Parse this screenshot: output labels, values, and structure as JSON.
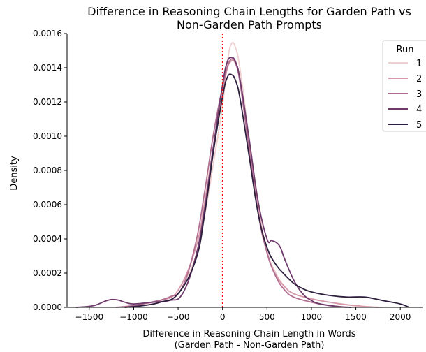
{
  "chart_data": {
    "type": "line",
    "title": "Difference in Reasoning Chain Lengths for Garden Path vs Non-Garden Path Prompts",
    "title_lines": [
      "Difference in Reasoning Chain Lengths for Garden Path vs",
      "Non-Garden Path Prompts"
    ],
    "xlabel_lines": [
      "Difference in Reasoning Chain Length in Words",
      "(Garden Path - Non-Garden Path)"
    ],
    "ylabel": "Density",
    "xlim": [
      -1750,
      2250
    ],
    "ylim": [
      0,
      0.0016
    ],
    "x_ticks": [
      -1500,
      -1000,
      -500,
      0,
      500,
      1000,
      1500,
      2000
    ],
    "x_tick_labels": [
      "−1500",
      "−1000",
      "−500",
      "0",
      "500",
      "1000",
      "1500",
      "2000"
    ],
    "y_ticks": [
      0,
      0.0002,
      0.0004,
      0.0006,
      0.0008,
      0.001,
      0.0012,
      0.0014,
      0.0016
    ],
    "y_tick_labels": [
      "0.0000",
      "0.0002",
      "0.0004",
      "0.0006",
      "0.0008",
      "0.0010",
      "0.0012",
      "0.0014",
      "0.0016"
    ],
    "grid": false,
    "reference_line": {
      "x": 0,
      "color": "#ff0000",
      "style": "dotted"
    },
    "legend": {
      "title": "Run",
      "placement": "top-right"
    },
    "series": [
      {
        "name": "1",
        "color": "#efcfcf",
        "x": [
          -1050,
          -900,
          -700,
          -500,
          -300,
          -200,
          -100,
          0,
          50,
          100,
          150,
          200,
          300,
          400,
          500,
          600,
          700,
          800,
          1000,
          1200,
          1400,
          1600,
          1800
        ],
        "y": [
          0,
          1e-05,
          3e-05,
          8e-05,
          0.0003,
          0.00054,
          0.00085,
          0.00118,
          0.00142,
          0.00154,
          0.00151,
          0.00138,
          0.00098,
          0.0006,
          0.00033,
          0.0002,
          0.00012,
          8e-05,
          5e-05,
          3e-05,
          1.5e-05,
          5e-06,
          0
        ]
      },
      {
        "name": "2",
        "color": "#d799a9",
        "x": [
          -1100,
          -900,
          -700,
          -500,
          -300,
          -200,
          -100,
          0,
          50,
          100,
          150,
          200,
          300,
          400,
          500,
          600,
          700,
          800,
          1000,
          1200,
          1400,
          1600,
          1750
        ],
        "y": [
          0,
          2e-05,
          4e-05,
          0.0001,
          0.00035,
          0.00062,
          0.00095,
          0.00125,
          0.00139,
          0.00144,
          0.00142,
          0.00132,
          0.00096,
          0.00058,
          0.00032,
          0.00019,
          0.00012,
          8e-05,
          5e-05,
          3e-05,
          1.5e-05,
          5e-06,
          0
        ]
      },
      {
        "name": "3",
        "color": "#b16e91",
        "x": [
          -1200,
          -1000,
          -800,
          -600,
          -450,
          -300,
          -200,
          -100,
          0,
          50,
          100,
          150,
          200,
          300,
          400,
          500,
          600,
          700,
          800,
          1000,
          1200,
          1400
        ],
        "y": [
          0,
          1e-05,
          3e-05,
          6e-05,
          0.00012,
          0.00038,
          0.00068,
          0.00102,
          0.00129,
          0.0014,
          0.00145,
          0.00142,
          0.0013,
          0.00092,
          0.00055,
          0.00032,
          0.00018,
          0.0001,
          6e-05,
          3e-05,
          1e-05,
          0
        ]
      },
      {
        "name": "4",
        "color": "#6e3a6c",
        "x": [
          -1650,
          -1450,
          -1300,
          -1200,
          -1100,
          -1000,
          -800,
          -600,
          -450,
          -300,
          -200,
          -100,
          0,
          50,
          100,
          150,
          200,
          300,
          400,
          500,
          550,
          600,
          650,
          700,
          800,
          900,
          1000,
          1100,
          1300,
          1450
        ],
        "y": [
          0,
          1e-05,
          4e-05,
          4.5e-05,
          3e-05,
          2e-05,
          3e-05,
          4e-05,
          8e-05,
          0.0003,
          0.00058,
          0.00095,
          0.0013,
          0.00143,
          0.00146,
          0.00143,
          0.00132,
          0.00098,
          0.00062,
          0.0004,
          0.00039,
          0.00038,
          0.00035,
          0.00028,
          0.00016,
          8e-05,
          4e-05,
          2e-05,
          5e-06,
          0
        ]
      },
      {
        "name": "5",
        "color": "#2d1e3e",
        "x": [
          -1100,
          -900,
          -700,
          -500,
          -300,
          -200,
          -100,
          0,
          50,
          100,
          150,
          200,
          300,
          400,
          500,
          600,
          700,
          800,
          900,
          1000,
          1200,
          1400,
          1600,
          1800,
          2000,
          2100
        ],
        "y": [
          0,
          1e-05,
          3e-05,
          8e-05,
          0.00028,
          0.00055,
          0.00092,
          0.00123,
          0.00134,
          0.00136,
          0.00132,
          0.00121,
          0.00088,
          0.00055,
          0.00035,
          0.00025,
          0.00019,
          0.00014,
          0.00011,
          9e-05,
          7e-05,
          6e-05,
          6e-05,
          4e-05,
          2e-05,
          0
        ]
      }
    ]
  }
}
